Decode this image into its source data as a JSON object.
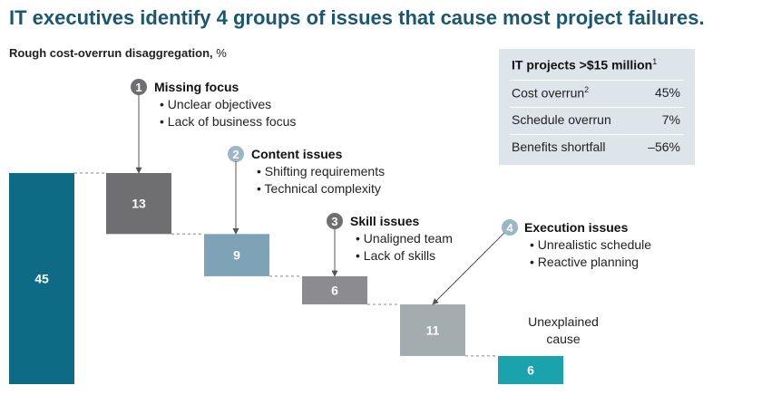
{
  "title": "IT executives identify 4 groups of issues that cause most project failures.",
  "subtitle": {
    "bold": "Rough cost-overrun disaggregation,",
    "unit": " %"
  },
  "info_box": {
    "heading": "IT projects >$15 million",
    "heading_sup": "1",
    "rows": [
      {
        "label": "Cost overrun",
        "sup": "2",
        "value": "45%"
      },
      {
        "label": "Schedule overrun",
        "sup": "",
        "value": "7%"
      },
      {
        "label": "Benefits shortfall",
        "sup": "",
        "value": "–56%"
      }
    ]
  },
  "chart_data": {
    "type": "waterfall",
    "title": "Rough cost-overrun disaggregation, %",
    "total": {
      "value": 45,
      "label": "45"
    },
    "steps": [
      {
        "value": 13,
        "label": "13",
        "issue_number": "1",
        "issue_title": "Missing focus",
        "bullets": [
          "Unclear objectives",
          "Lack of business focus"
        ]
      },
      {
        "value": 9,
        "label": "9",
        "issue_number": "2",
        "issue_title": "Content issues",
        "bullets": [
          "Shifting requirements",
          "Technical complexity"
        ]
      },
      {
        "value": 6,
        "label": "6",
        "issue_number": "3",
        "issue_title": "Skill issues",
        "bullets": [
          "Unaligned team",
          "Lack of skills"
        ]
      },
      {
        "value": 11,
        "label": "11",
        "issue_number": "4",
        "issue_title": "Execution issues",
        "bullets": [
          "Unrealistic schedule",
          "Reactive planning"
        ]
      }
    ],
    "remainder": {
      "value": 6,
      "label": "6",
      "caption": [
        "Unexplained",
        "cause"
      ]
    },
    "colors": {
      "total": "#0e6b86",
      "steps": [
        "#6f6f72",
        "#7ea3b7",
        "#8c8c90",
        "#a3adb0"
      ],
      "remainder": "#1aa3ad",
      "badge_dark": "#6f6f72",
      "badge_light": "#9bb7c6"
    }
  }
}
